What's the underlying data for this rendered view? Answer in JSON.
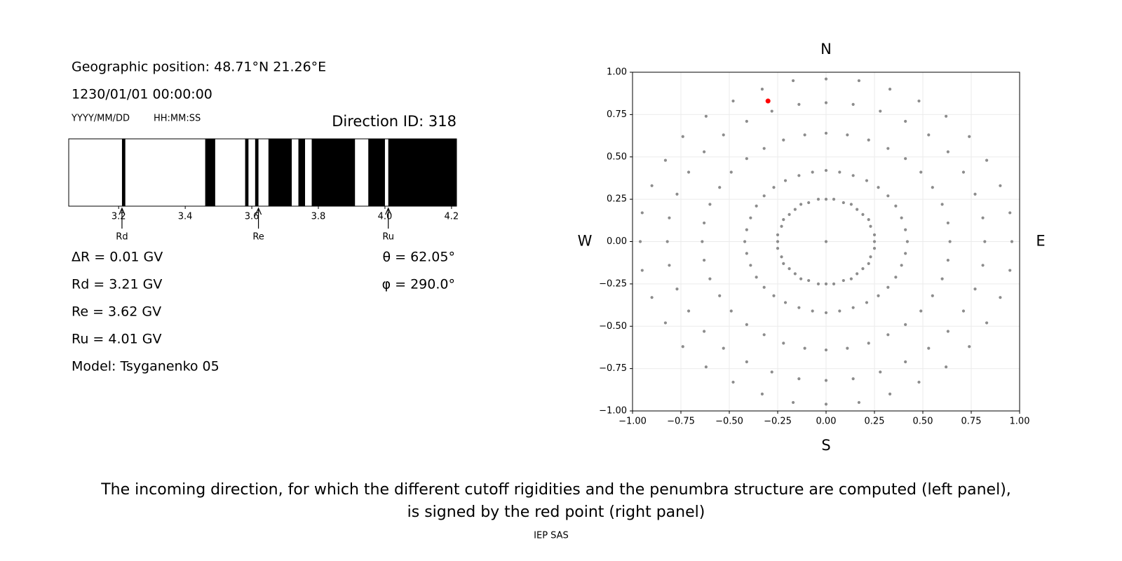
{
  "header": {
    "position": "Geographic position: 48.71°N 21.26°E",
    "datetime": "1230/01/01 00:00:00",
    "date_format": "YYYY/MM/DD",
    "time_format": "HH:MM:SS"
  },
  "results": [
    "ΔR = 0.01 GV",
    "Rd = 3.21 GV",
    "Re = 3.62 GV",
    "Ru = 4.01 GV",
    "Model: Tsyganenko 05"
  ],
  "angles": [
    "θ = 62.05°",
    "φ = 290.0°"
  ],
  "caption": [
    "The incoming direction, for which the different cutoff rigidities and the penumbra structure are computed (left panel),",
    "is signed by the red point (right panel)"
  ],
  "footer": "IEP SAS",
  "chart_data": [
    {
      "type": "penumbra",
      "title": "Direction ID: 318",
      "xlim": [
        3.05,
        4.215
      ],
      "xticks": [
        3.2,
        3.4,
        3.6,
        3.8,
        {
          "value": 4,
          "label": "4.0"
        },
        4.2
      ],
      "bands": [
        [
          3.21,
          3.22
        ],
        [
          3.46,
          3.49
        ],
        [
          3.58,
          3.59
        ],
        [
          3.61,
          3.62
        ],
        [
          3.65,
          3.72
        ],
        [
          3.74,
          3.76
        ],
        [
          3.78,
          3.91
        ],
        [
          3.95,
          4.0
        ],
        [
          4.01,
          4.215
        ]
      ],
      "color": "#000000",
      "markers": [
        {
          "label": "Rd",
          "value": 3.21
        },
        {
          "label": "Re",
          "value": 3.62
        },
        {
          "label": "Ru",
          "value": 4.01
        }
      ]
    },
    {
      "type": "scatter",
      "xlim": [
        -1,
        1
      ],
      "ylim": [
        -1,
        1
      ],
      "xticks": [
        {
          "value": -1,
          "label": "−1.00"
        },
        {
          "value": -0.75,
          "label": "−0.75"
        },
        {
          "value": -0.5,
          "label": "−0.50"
        },
        {
          "value": -0.25,
          "label": "−0.25"
        },
        {
          "value": 0,
          "label": "0.00"
        },
        {
          "value": 0.25,
          "label": "0.25"
        },
        {
          "value": 0.5,
          "label": "0.50"
        },
        {
          "value": 0.75,
          "label": "0.75"
        },
        {
          "value": 1,
          "label": "1.00"
        }
      ],
      "yticks": [
        {
          "value": -1,
          "label": "−1.00"
        },
        {
          "value": -0.75,
          "label": "−0.75"
        },
        {
          "value": -0.5,
          "label": "−0.50"
        },
        {
          "value": -0.25,
          "label": "−0.25"
        },
        {
          "value": 0,
          "label": "0.00"
        },
        {
          "value": 0.25,
          "label": "0.25"
        },
        {
          "value": 0.5,
          "label": "0.50"
        },
        {
          "value": 0.75,
          "label": "0.75"
        },
        {
          "value": 1,
          "label": "1.00"
        }
      ],
      "grid": true,
      "annotations": [
        {
          "text": "N",
          "side": "top"
        },
        {
          "text": "S",
          "side": "bottom"
        },
        {
          "text": "W",
          "side": "left"
        },
        {
          "text": "E",
          "side": "right"
        }
      ],
      "series": [
        {
          "color": "#8c8c8c",
          "x": [
            0,
            0.25,
            0.25,
            0.23,
            0.22,
            0.19,
            0.16,
            0.13,
            0.09,
            0.04,
            0,
            -0.04,
            -0.09,
            -0.13,
            -0.16,
            -0.19,
            -0.22,
            -0.23,
            -0.25,
            -0.25,
            -0.25,
            -0.23,
            -0.22,
            -0.19,
            -0.16,
            -0.13,
            -0.09,
            -0.04,
            0,
            0.04,
            0.09,
            0.13,
            0.16,
            0.19,
            0.22,
            0.23,
            0.25,
            0.42,
            0.41,
            0.39,
            0.36,
            0.32,
            0.27,
            0.21,
            0.14,
            0.07,
            0,
            -0.07,
            -0.14,
            -0.21,
            -0.27,
            -0.32,
            -0.36,
            -0.39,
            -0.41,
            -0.42,
            -0.41,
            -0.39,
            -0.36,
            -0.32,
            -0.27,
            -0.21,
            -0.14,
            -0.07,
            0,
            0.07,
            0.14,
            0.21,
            0.27,
            0.32,
            0.36,
            0.39,
            0.41,
            0.64,
            0.63,
            0.6,
            0.55,
            0.49,
            0.41,
            0.32,
            0.22,
            0.11,
            0,
            -0.11,
            -0.22,
            -0.32,
            -0.41,
            -0.49,
            -0.55,
            -0.6,
            -0.63,
            -0.64,
            -0.63,
            -0.6,
            -0.55,
            -0.49,
            -0.41,
            -0.32,
            -0.22,
            -0.11,
            0,
            0.11,
            0.22,
            0.32,
            0.41,
            0.49,
            0.55,
            0.6,
            0.63,
            0.82,
            0.81,
            0.77,
            0.71,
            0.63,
            0.53,
            0.41,
            0.28,
            0.14,
            0,
            -0.14,
            -0.28,
            -0.41,
            -0.53,
            -0.63,
            -0.71,
            -0.77,
            -0.81,
            -0.82,
            -0.81,
            -0.77,
            -0.71,
            -0.63,
            -0.53,
            -0.41,
            -0.28,
            -0.14,
            0,
            0.14,
            0.28,
            0.41,
            0.53,
            0.63,
            0.71,
            0.77,
            0.81,
            0.96,
            0.95,
            0.9,
            0.83,
            0.74,
            0.62,
            0.48,
            0.33,
            0.17,
            0,
            -0.17,
            -0.33,
            -0.48,
            -0.62,
            -0.74,
            -0.83,
            -0.9,
            -0.95,
            -0.96,
            -0.95,
            -0.9,
            -0.83,
            -0.74,
            -0.62,
            -0.48,
            -0.33,
            -0.17,
            0,
            0.17,
            0.33,
            0.48,
            0.62,
            0.74,
            0.83,
            0.9,
            0.95
          ],
          "y": [
            0,
            0,
            0.04,
            0.09,
            0.13,
            0.16,
            0.19,
            0.22,
            0.23,
            0.25,
            0.25,
            0.25,
            0.23,
            0.22,
            0.19,
            0.16,
            0.13,
            0.09,
            0.04,
            0,
            -0.04,
            -0.09,
            -0.13,
            -0.16,
            -0.19,
            -0.22,
            -0.23,
            -0.25,
            -0.25,
            -0.25,
            -0.23,
            -0.22,
            -0.19,
            -0.16,
            -0.13,
            -0.09,
            -0.04,
            0,
            0.07,
            0.14,
            0.21,
            0.27,
            0.32,
            0.36,
            0.39,
            0.41,
            0.42,
            0.41,
            0.39,
            0.36,
            0.32,
            0.27,
            0.21,
            0.14,
            0.07,
            0,
            -0.07,
            -0.14,
            -0.21,
            -0.27,
            -0.32,
            -0.36,
            -0.39,
            -0.41,
            -0.42,
            -0.41,
            -0.39,
            -0.36,
            -0.32,
            -0.27,
            -0.21,
            -0.14,
            -0.07,
            0,
            0.11,
            0.22,
            0.32,
            0.41,
            0.49,
            0.55,
            0.6,
            0.63,
            0.64,
            0.63,
            0.6,
            0.55,
            0.49,
            0.41,
            0.32,
            0.22,
            0.11,
            0,
            -0.11,
            -0.22,
            -0.32,
            -0.41,
            -0.49,
            -0.55,
            -0.6,
            -0.63,
            -0.64,
            -0.63,
            -0.6,
            -0.55,
            -0.49,
            -0.41,
            -0.32,
            -0.22,
            -0.11,
            0,
            0.14,
            0.28,
            0.41,
            0.53,
            0.63,
            0.71,
            0.77,
            0.81,
            0.82,
            0.81,
            0.77,
            0.71,
            0.63,
            0.53,
            0.41,
            0.28,
            0.14,
            0,
            -0.14,
            -0.28,
            -0.41,
            -0.53,
            -0.63,
            -0.71,
            -0.77,
            -0.81,
            -0.82,
            -0.81,
            -0.77,
            -0.71,
            -0.63,
            -0.53,
            -0.41,
            -0.28,
            -0.14,
            0,
            0.17,
            0.33,
            0.48,
            0.62,
            0.74,
            0.83,
            0.9,
            0.95,
            0.96,
            0.95,
            0.9,
            0.83,
            0.74,
            0.62,
            0.48,
            0.33,
            0.17,
            0,
            -0.17,
            -0.33,
            -0.48,
            -0.62,
            -0.74,
            -0.83,
            -0.9,
            -0.95,
            -0.96,
            -0.95,
            -0.9,
            -0.83,
            -0.74,
            -0.62,
            -0.48,
            -0.33,
            -0.17
          ]
        },
        {
          "color": "#ff0000",
          "x": [
            -0.3
          ],
          "y": [
            0.83
          ]
        }
      ]
    }
  ]
}
